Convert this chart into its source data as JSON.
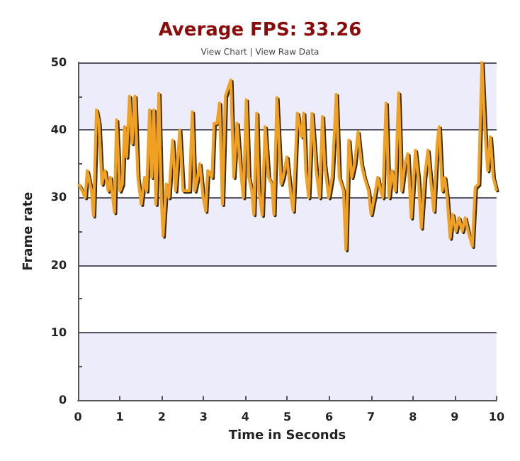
{
  "chart_data": {
    "type": "line",
    "title": "Average FPS: 33.26",
    "subtitle": "View Chart | View Raw Data",
    "xlabel": "Time in Seconds",
    "ylabel": "Frame rate",
    "xlim": [
      0,
      10
    ],
    "xticks": [
      0,
      1,
      2,
      3,
      4,
      5,
      6,
      7,
      8,
      9,
      10
    ],
    "ylim": [
      0,
      50
    ],
    "yticks": [
      0,
      {
        "value": 5,
        "label": null
      },
      10,
      {
        "value": 15,
        "label": null
      },
      20,
      {
        "value": 25,
        "label": null
      },
      30,
      {
        "value": 35,
        "label": null
      },
      40,
      {
        "value": 45,
        "label": null
      },
      50
    ],
    "grid": "y",
    "marker": "none",
    "line_style": "solid",
    "series": [
      {
        "color": "#f0a020",
        "x": [
          0.02,
          0.17,
          0.22,
          0.32,
          0.37,
          0.44,
          0.5,
          0.57,
          0.64,
          0.72,
          0.77,
          0.87,
          0.92,
          1.0,
          1.06,
          1.11,
          1.16,
          1.23,
          1.29,
          1.36,
          1.43,
          1.51,
          1.59,
          1.64,
          1.71,
          1.76,
          1.81,
          1.86,
          1.93,
          1.99,
          2.03,
          2.11,
          2.17,
          2.26,
          2.33,
          2.43,
          2.51,
          2.66,
          2.73,
          2.79,
          2.86,
          2.91,
          2.99,
          3.05,
          3.1,
          3.2,
          3.25,
          3.32,
          3.38,
          3.45,
          3.52,
          3.65,
          3.72,
          3.8,
          3.87,
          3.95,
          4.02,
          4.08,
          4.15,
          4.2,
          4.27,
          4.32,
          4.4,
          4.47,
          4.55,
          4.63,
          4.68,
          4.75,
          4.85,
          4.9,
          4.99,
          5.09,
          5.14,
          5.24,
          5.34,
          5.39,
          5.44,
          5.51,
          5.59,
          5.69,
          5.77,
          5.84,
          5.89,
          5.99,
          6.07,
          6.17,
          6.24,
          6.34,
          6.4,
          6.47,
          6.54,
          6.61,
          6.69,
          6.77,
          6.84,
          6.94,
          7.0,
          7.08,
          7.16,
          7.23,
          7.28,
          7.36,
          7.43,
          7.5,
          7.58,
          7.66,
          7.73,
          7.81,
          7.88,
          7.96,
          8.06,
          8.13,
          8.2,
          8.28,
          8.36,
          8.45,
          8.5,
          8.58,
          8.63,
          8.7,
          8.76,
          8.82,
          8.89,
          8.95,
          9.03,
          9.1,
          9.18,
          9.25,
          9.32,
          9.42,
          9.49,
          9.57,
          9.65,
          9.72,
          9.79,
          9.85,
          9.92,
          10.0
        ],
        "values": [
          32,
          30,
          34,
          31,
          27.3,
          43,
          41,
          32,
          34,
          31,
          33,
          27.8,
          41.5,
          31,
          32,
          40.5,
          36,
          45,
          38,
          45,
          33,
          29,
          33,
          31,
          43,
          33,
          43,
          29,
          45.4,
          30,
          24.3,
          32,
          30,
          38.5,
          31,
          40,
          31,
          31,
          42.7,
          31,
          33,
          35,
          30,
          28,
          34,
          33,
          41,
          41,
          44,
          29,
          45,
          47.4,
          33,
          41,
          35,
          30,
          44.5,
          33,
          31,
          27.5,
          42.5,
          31,
          27.4,
          40.5,
          33,
          32,
          27.5,
          44.8,
          32,
          33,
          36,
          30,
          28,
          42.5,
          39,
          42.5,
          34,
          30,
          42.5,
          34,
          30,
          42,
          35,
          30,
          33,
          45.3,
          33,
          31,
          22.3,
          38.5,
          33,
          35,
          39.7,
          35,
          33,
          31,
          27.5,
          30,
          33,
          31,
          30,
          44,
          30,
          34,
          31,
          45.5,
          31,
          35,
          36.5,
          27,
          37,
          33,
          25.5,
          33,
          37,
          31,
          28,
          38,
          40.5,
          31,
          33,
          30,
          24,
          27.5,
          25,
          27,
          25,
          27,
          25,
          22.8,
          31.5,
          32,
          50,
          40,
          34,
          39,
          33,
          31
        ]
      }
    ]
  }
}
